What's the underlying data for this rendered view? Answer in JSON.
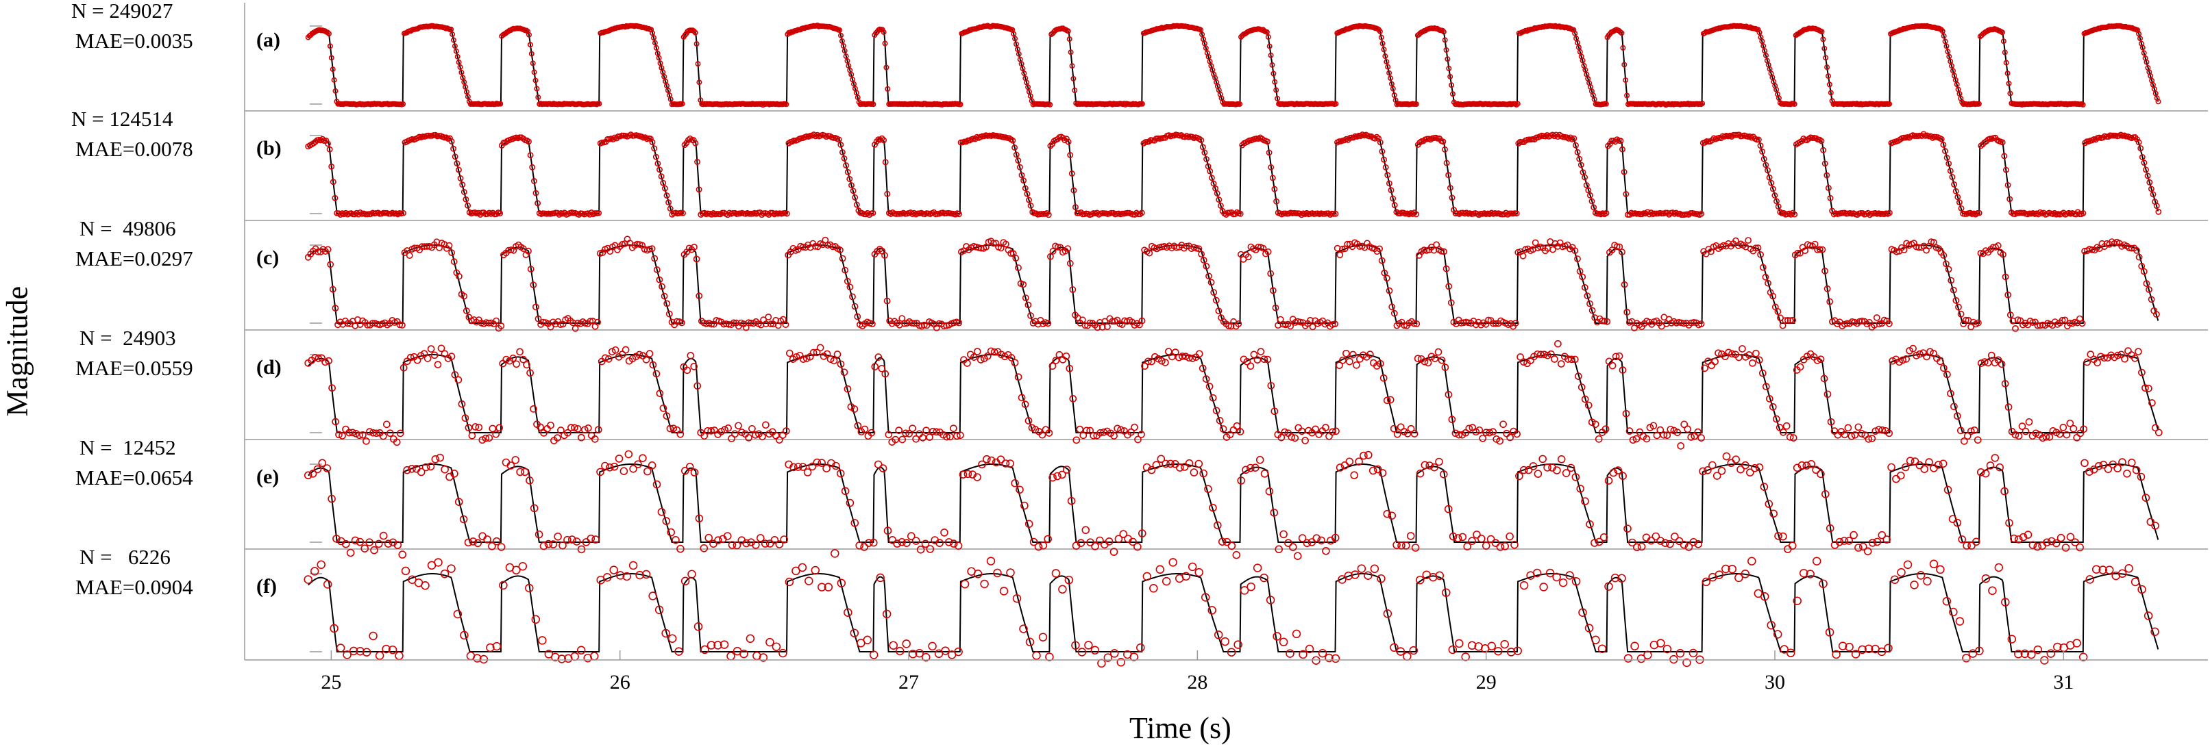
{
  "chart_data": {
    "type": "line",
    "xlabel": "Time (s)",
    "ylabel": "Magnitude",
    "xlim": [
      24.7,
      31.5
    ],
    "x_ticks": [
      25,
      26,
      27,
      28,
      29,
      30,
      31
    ],
    "colors": {
      "samples": "#d40000",
      "reference": "#000000",
      "axes": "#999999"
    },
    "signal": {
      "t_start": 24.92,
      "t_end": 31.33,
      "pulses": [
        [
          24.92,
          25.02,
          0.95,
          0.0
        ],
        [
          25.25,
          25.48,
          1.0,
          0.1
        ],
        [
          25.59,
          25.72,
          0.97,
          0.0
        ],
        [
          25.93,
          26.18,
          1.0,
          0.1
        ],
        [
          26.22,
          26.28,
          0.95,
          0.0
        ],
        [
          26.58,
          26.83,
          1.0,
          0.12
        ],
        [
          26.88,
          26.93,
          0.96,
          0.0
        ],
        [
          27.18,
          27.43,
          1.0,
          0.12
        ],
        [
          27.49,
          27.58,
          0.97,
          0.0
        ],
        [
          27.81,
          28.09,
          1.0,
          0.1
        ],
        [
          28.15,
          28.28,
          0.96,
          0.0
        ],
        [
          28.48,
          28.69,
          1.0,
          0.1
        ],
        [
          28.76,
          28.89,
          0.97,
          0.0
        ],
        [
          29.11,
          29.38,
          1.0,
          0.1
        ],
        [
          29.42,
          29.49,
          0.95,
          0.0
        ],
        [
          29.75,
          30.02,
          1.0,
          0.1
        ],
        [
          30.07,
          30.2,
          0.97,
          0.0
        ],
        [
          30.4,
          30.65,
          1.0,
          0.1
        ],
        [
          30.71,
          30.82,
          0.96,
          0.0
        ],
        [
          31.07,
          31.33,
          1.0,
          0.12
        ]
      ]
    },
    "series": [
      {
        "letter": "(a)",
        "n_label": "N = 249027",
        "mae_label": "MAE=0.0035",
        "noise": 0.0035
      },
      {
        "letter": "(b)",
        "n_label": "N = 124514",
        "mae_label": "MAE=0.0078",
        "noise": 0.0078
      },
      {
        "letter": "(c)",
        "n_label": "N =  49806",
        "mae_label": "MAE=0.0297",
        "noise": 0.0297
      },
      {
        "letter": "(d)",
        "n_label": "N =  24903",
        "mae_label": "MAE=0.0559",
        "noise": 0.0559
      },
      {
        "letter": "(e)",
        "n_label": "N =  12452",
        "mae_label": "MAE=0.0654",
        "noise": 0.0654
      },
      {
        "letter": "(f)",
        "n_label": "N =   6226",
        "mae_label": "MAE=0.0904",
        "noise": 0.0904
      }
    ]
  }
}
